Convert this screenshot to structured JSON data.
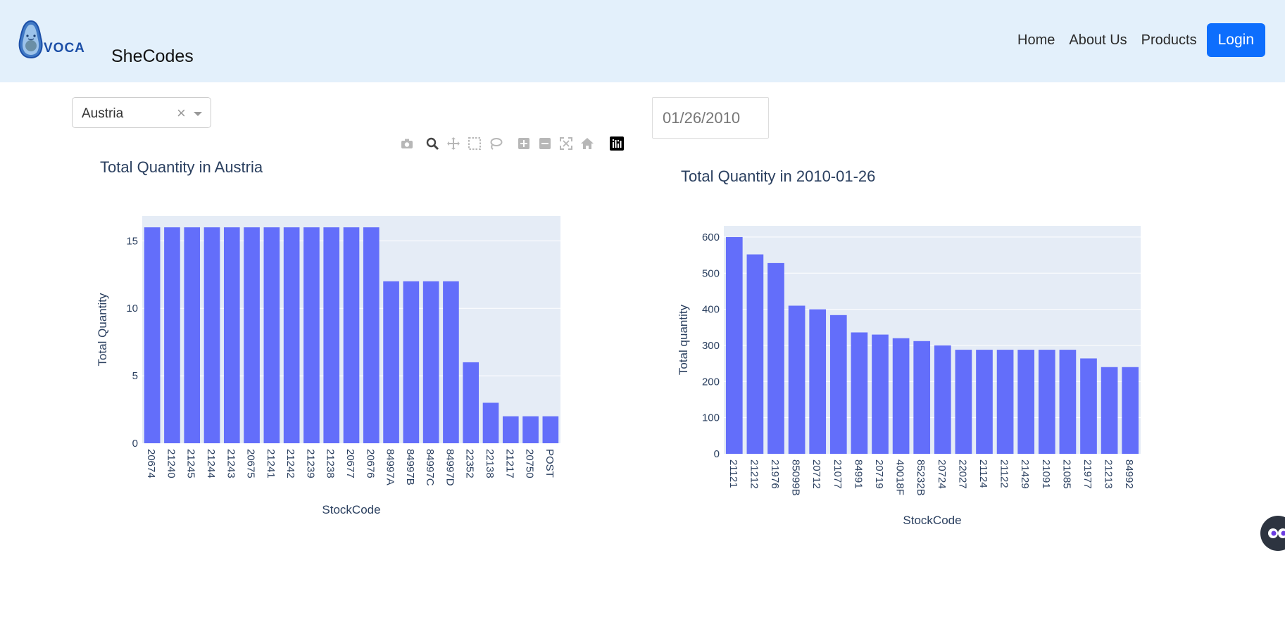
{
  "nav": {
    "logo_text": "VOCA",
    "brand": "SheCodes",
    "links": [
      "Home",
      "About Us",
      "Products"
    ],
    "login": "Login"
  },
  "filters": {
    "country": "Austria",
    "clear_symbol": "×",
    "date": "01/26/2010"
  },
  "modebar_icons": [
    "camera-icon",
    "zoom-icon",
    "pan-icon",
    "box-select-icon",
    "lasso-icon",
    "zoom-in-icon",
    "zoom-out-icon",
    "autoscale-icon",
    "reset-axes-icon",
    "plotly-logo-icon"
  ],
  "colors": {
    "bar": "#636efa",
    "plot_bg": "#e5ecf6",
    "navbar": "#e3f0fb",
    "login": "#0d6efd"
  },
  "chart_data": [
    {
      "type": "bar",
      "title": "Total Quantity in Austria",
      "xlabel": "StockCode",
      "ylabel": "Total Quantity",
      "ylim": [
        0,
        16.84
      ],
      "yticks": [
        0,
        5,
        10,
        15
      ],
      "categories": [
        "20674",
        "21240",
        "21245",
        "21244",
        "21243",
        "20675",
        "21241",
        "21242",
        "21239",
        "21238",
        "20677",
        "20676",
        "84997A",
        "84997B",
        "84997C",
        "84997D",
        "22352",
        "22138",
        "21217",
        "20750",
        "POST"
      ],
      "values": [
        16,
        16,
        16,
        16,
        16,
        16,
        16,
        16,
        16,
        16,
        16,
        16,
        12,
        12,
        12,
        12,
        6,
        3,
        2,
        2,
        2
      ]
    },
    {
      "type": "bar",
      "title": "Total Quantity in 2010-01-26",
      "xlabel": "StockCode",
      "ylabel": "Total quantity",
      "ylim": [
        0,
        631
      ],
      "yticks": [
        0,
        100,
        200,
        300,
        400,
        500,
        600
      ],
      "categories": [
        "21121",
        "21212",
        "21976",
        "85099B",
        "20712",
        "21077",
        "84991",
        "20719",
        "40018F",
        "85232B",
        "20724",
        "22027",
        "21124",
        "21122",
        "21429",
        "21091",
        "21085",
        "21977",
        "21213",
        "84992"
      ],
      "values": [
        600,
        552,
        528,
        410,
        400,
        384,
        336,
        330,
        320,
        312,
        300,
        288,
        288,
        288,
        288,
        288,
        288,
        264,
        240,
        240
      ]
    }
  ]
}
